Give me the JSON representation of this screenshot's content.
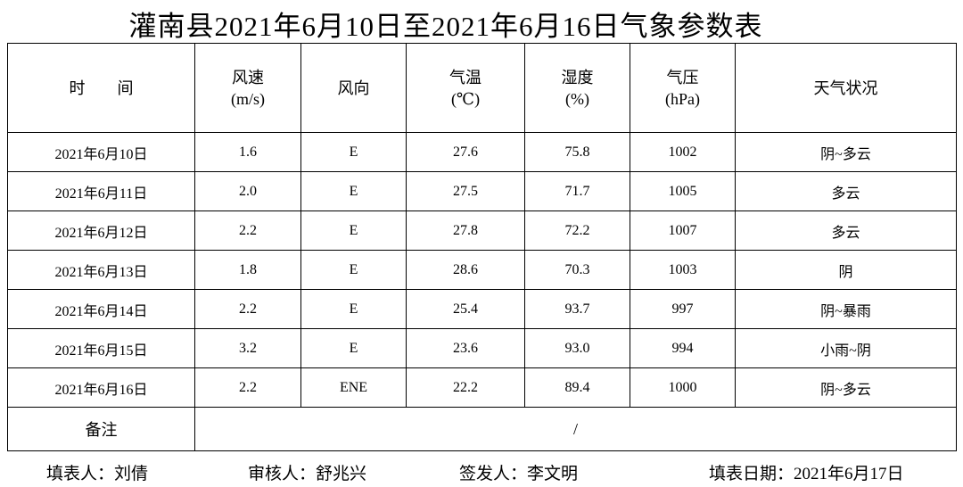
{
  "title": "灌南县2021年6月10日至2021年6月16日气象参数表",
  "table": {
    "header": [
      [
        "时　　间"
      ],
      [
        "风速",
        "(m/s)"
      ],
      [
        "风向"
      ],
      [
        "气温",
        "(℃)"
      ],
      [
        "湿度",
        "(%)"
      ],
      [
        "气压",
        "(hPa)"
      ],
      [
        "天气状况"
      ]
    ],
    "rows": [
      [
        "2021年6月10日",
        "1.6",
        "E",
        "27.6",
        "75.8",
        "1002",
        "阴~多云"
      ],
      [
        "2021年6月11日",
        "2.0",
        "E",
        "27.5",
        "71.7",
        "1005",
        "多云"
      ],
      [
        "2021年6月12日",
        "2.2",
        "E",
        "27.8",
        "72.2",
        "1007",
        "多云"
      ],
      [
        "2021年6月13日",
        "1.8",
        "E",
        "28.6",
        "70.3",
        "1003",
        "阴"
      ],
      [
        "2021年6月14日",
        "2.2",
        "E",
        "25.4",
        "93.7",
        "997",
        "阴~暴雨"
      ],
      [
        "2021年6月15日",
        "3.2",
        "E",
        "23.6",
        "93.0",
        "994",
        "小雨~阴"
      ],
      [
        "2021年6月16日",
        "2.2",
        "ENE",
        "22.2",
        "89.4",
        "1000",
        "阴~多云"
      ]
    ],
    "remark": {
      "label": "备注",
      "value": "/"
    }
  },
  "footer": [
    "填表人：刘倩",
    "审核人：舒兆兴",
    "签发人：李文明",
    "填表日期：2021年6月17日"
  ]
}
